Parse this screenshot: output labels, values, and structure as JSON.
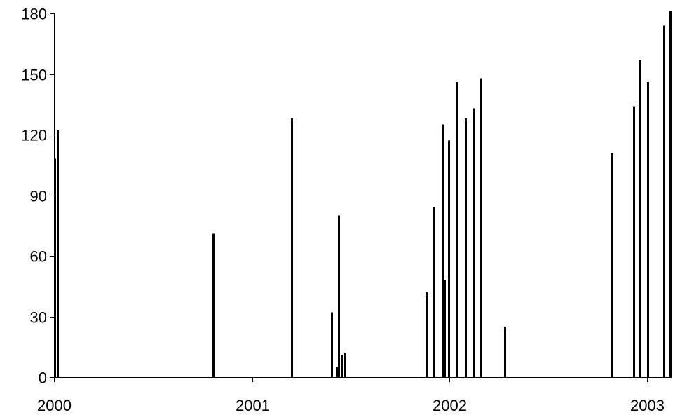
{
  "chart_data": {
    "type": "bar",
    "title": "",
    "xlabel": "",
    "ylabel": "",
    "x_axis": {
      "type": "date",
      "range": [
        "2000-01-01",
        "2003-02-15"
      ],
      "ticks": [
        "2000-01-01",
        "2001-01-01",
        "2002-01-01",
        "2003-01-01"
      ],
      "tick_labels": [
        "2000",
        "2001",
        "2002",
        "2003"
      ]
    },
    "y_axis": {
      "range": [
        0,
        180
      ],
      "ticks": [
        0,
        30,
        60,
        90,
        120,
        150,
        180
      ],
      "tick_labels": [
        "0",
        "30",
        "60",
        "90",
        "120",
        "150",
        "180"
      ]
    },
    "grid": false,
    "legend": "none",
    "bar_color": "#000000",
    "series": [
      {
        "points": [
          {
            "x": "2000-01-01",
            "y": 108
          },
          {
            "x": "2000-01-08",
            "y": 122
          },
          {
            "x": "2000-10-22",
            "y": 71
          },
          {
            "x": "2001-03-16",
            "y": 128
          },
          {
            "x": "2001-05-28",
            "y": 32
          },
          {
            "x": "2001-06-08",
            "y": 5
          },
          {
            "x": "2001-06-10",
            "y": 80
          },
          {
            "x": "2001-06-15",
            "y": 11
          },
          {
            "x": "2001-06-22",
            "y": 12
          },
          {
            "x": "2001-11-19",
            "y": 42
          },
          {
            "x": "2001-12-04",
            "y": 84
          },
          {
            "x": "2001-12-19",
            "y": 125
          },
          {
            "x": "2001-12-23",
            "y": 48
          },
          {
            "x": "2001-12-31",
            "y": 117
          },
          {
            "x": "2002-01-15",
            "y": 146
          },
          {
            "x": "2002-01-31",
            "y": 128
          },
          {
            "x": "2002-02-15",
            "y": 133
          },
          {
            "x": "2002-02-28",
            "y": 148
          },
          {
            "x": "2002-04-14",
            "y": 25
          },
          {
            "x": "2002-10-29",
            "y": 111
          },
          {
            "x": "2002-12-08",
            "y": 134
          },
          {
            "x": "2002-12-20",
            "y": 157
          },
          {
            "x": "2003-01-03",
            "y": 146
          },
          {
            "x": "2003-02-01",
            "y": 174
          },
          {
            "x": "2003-02-14",
            "y": 181
          }
        ]
      }
    ]
  }
}
